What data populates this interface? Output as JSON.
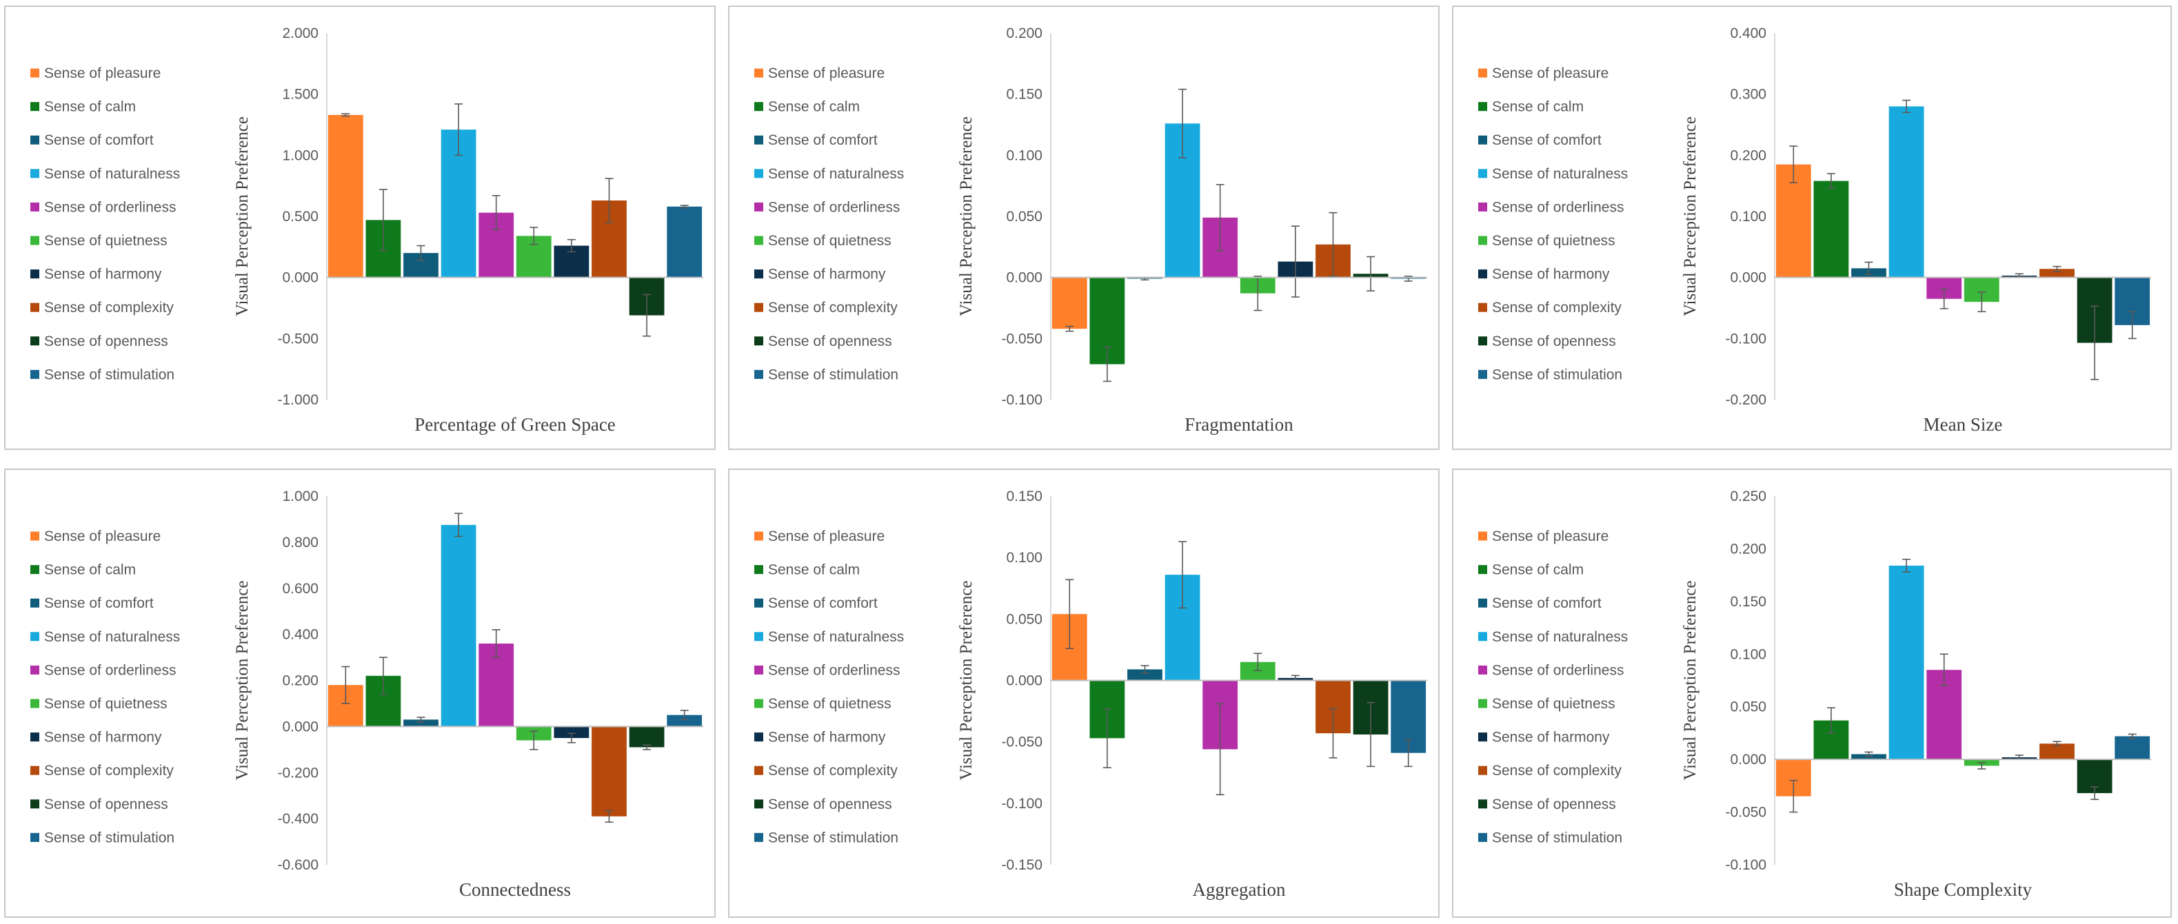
{
  "legend": [
    {
      "label": "Sense of pleasure",
      "color": "#ff7f2a"
    },
    {
      "label": "Sense of calm",
      "color": "#0f7a1c"
    },
    {
      "label": "Sense of comfort",
      "color": "#0f5c7a"
    },
    {
      "label": "Sense of naturalness",
      "color": "#18aadf"
    },
    {
      "label": "Sense of orderliness",
      "color": "#b42ea8"
    },
    {
      "label": "Sense of quietness",
      "color": "#3ab83a"
    },
    {
      "label": "Sense of harmony",
      "color": "#0b2e4a"
    },
    {
      "label": "Sense of complexity",
      "color": "#b54a0c"
    },
    {
      "label": "Sense of openness",
      "color": "#0c3d1a"
    },
    {
      "label": "Sense of stimulation",
      "color": "#17648f"
    }
  ],
  "chart_data": [
    {
      "type": "bar",
      "title": "Percentage of Green Space",
      "xlabel": "Percentage of Green Space",
      "ylabel": "Visual Perception Preference",
      "ylim": [
        -1.0,
        2.0
      ],
      "yticks": [
        "2.000",
        "1.500",
        "1.000",
        "0.500",
        "0.000",
        "-0.500",
        "-1.000"
      ],
      "categories": [
        "Sense of pleasure",
        "Sense of calm",
        "Sense of comfort",
        "Sense of naturalness",
        "Sense of orderliness",
        "Sense of quietness",
        "Sense of harmony",
        "Sense of complexity",
        "Sense of openness",
        "Sense of stimulation"
      ],
      "values": [
        1.33,
        0.47,
        0.2,
        1.21,
        0.53,
        0.34,
        0.26,
        0.63,
        -0.31,
        0.58
      ],
      "errors": [
        0.01,
        0.25,
        0.06,
        0.21,
        0.14,
        0.07,
        0.05,
        0.18,
        0.17,
        0.01
      ]
    },
    {
      "type": "bar",
      "title": "Fragmentation",
      "xlabel": "Fragmentation",
      "ylabel": "Visual Perception Preference",
      "ylim": [
        -0.1,
        0.2
      ],
      "yticks": [
        "0.200",
        "0.150",
        "0.100",
        "0.050",
        "0.000",
        "-0.050",
        "-0.100"
      ],
      "categories": [
        "Sense of pleasure",
        "Sense of calm",
        "Sense of comfort",
        "Sense of naturalness",
        "Sense of orderliness",
        "Sense of quietness",
        "Sense of harmony",
        "Sense of complexity",
        "Sense of openness",
        "Sense of stimulation"
      ],
      "values": [
        -0.042,
        -0.071,
        -0.001,
        0.126,
        0.049,
        -0.013,
        0.013,
        0.027,
        0.003,
        -0.001
      ],
      "errors": [
        0.002,
        0.014,
        0.001,
        0.028,
        0.027,
        0.014,
        0.029,
        0.026,
        0.014,
        0.002
      ]
    },
    {
      "type": "bar",
      "title": "Mean Size",
      "xlabel": "Mean Size",
      "ylabel": "Visual Perception Preference",
      "ylim": [
        -0.2,
        0.4
      ],
      "yticks": [
        "0.400",
        "0.300",
        "0.200",
        "0.100",
        "0.000",
        "-0.100",
        "-0.200"
      ],
      "categories": [
        "Sense of pleasure",
        "Sense of calm",
        "Sense of comfort",
        "Sense of naturalness",
        "Sense of orderliness",
        "Sense of quietness",
        "Sense of harmony",
        "Sense of complexity",
        "Sense of openness",
        "Sense of stimulation"
      ],
      "values": [
        0.185,
        0.158,
        0.015,
        0.28,
        -0.035,
        -0.04,
        0.003,
        0.014,
        -0.107,
        -0.078
      ],
      "errors": [
        0.03,
        0.012,
        0.01,
        0.01,
        0.016,
        0.016,
        0.003,
        0.004,
        0.06,
        0.022
      ]
    },
    {
      "type": "bar",
      "title": "Connectedness",
      "xlabel": "Connectedness",
      "ylabel": "Visual Perception Preference",
      "ylim": [
        -0.6,
        1.0
      ],
      "yticks": [
        "1.000",
        "0.800",
        "0.600",
        "0.400",
        "0.200",
        "0.000",
        "-0.200",
        "-0.400",
        "-0.600"
      ],
      "categories": [
        "Sense of pleasure",
        "Sense of calm",
        "Sense of comfort",
        "Sense of naturalness",
        "Sense of orderliness",
        "Sense of quietness",
        "Sense of harmony",
        "Sense of complexity",
        "Sense of openness",
        "Sense of stimulation"
      ],
      "values": [
        0.18,
        0.22,
        0.03,
        0.875,
        0.36,
        -0.06,
        -0.05,
        -0.39,
        -0.09,
        0.05
      ],
      "errors": [
        0.08,
        0.08,
        0.01,
        0.05,
        0.06,
        0.04,
        0.02,
        0.025,
        0.01,
        0.02
      ]
    },
    {
      "type": "bar",
      "title": "Aggregation",
      "xlabel": "Aggregation",
      "ylabel": "Visual Perception Preference",
      "ylim": [
        -0.15,
        0.15
      ],
      "yticks": [
        "0.150",
        "0.100",
        "0.050",
        "0.000",
        "-0.050",
        "-0.100",
        "-0.150"
      ],
      "categories": [
        "Sense of pleasure",
        "Sense of calm",
        "Sense of comfort",
        "Sense of naturalness",
        "Sense of orderliness",
        "Sense of quietness",
        "Sense of harmony",
        "Sense of complexity",
        "Sense of openness",
        "Sense of stimulation"
      ],
      "values": [
        0.054,
        -0.047,
        0.009,
        0.086,
        -0.056,
        0.015,
        0.002,
        -0.043,
        -0.044,
        -0.059
      ],
      "errors": [
        0.028,
        0.024,
        0.003,
        0.027,
        0.037,
        0.007,
        0.002,
        0.02,
        0.026,
        0.011
      ]
    },
    {
      "type": "bar",
      "title": "Shape Complexity",
      "xlabel": "Shape Complexity",
      "ylabel": "Visual Perception Preference",
      "ylim": [
        -0.1,
        0.25
      ],
      "yticks": [
        "0.250",
        "0.200",
        "0.150",
        "0.100",
        "0.050",
        "0.000",
        "-0.050",
        "-0.100"
      ],
      "categories": [
        "Sense of pleasure",
        "Sense of calm",
        "Sense of comfort",
        "Sense of naturalness",
        "Sense of orderliness",
        "Sense of quietness",
        "Sense of harmony",
        "Sense of complexity",
        "Sense of openness",
        "Sense of stimulation"
      ],
      "values": [
        -0.035,
        0.037,
        0.005,
        0.184,
        0.085,
        -0.006,
        0.002,
        0.015,
        -0.032,
        0.022
      ],
      "errors": [
        0.015,
        0.012,
        0.002,
        0.006,
        0.015,
        0.003,
        0.002,
        0.002,
        0.006,
        0.002
      ]
    }
  ]
}
